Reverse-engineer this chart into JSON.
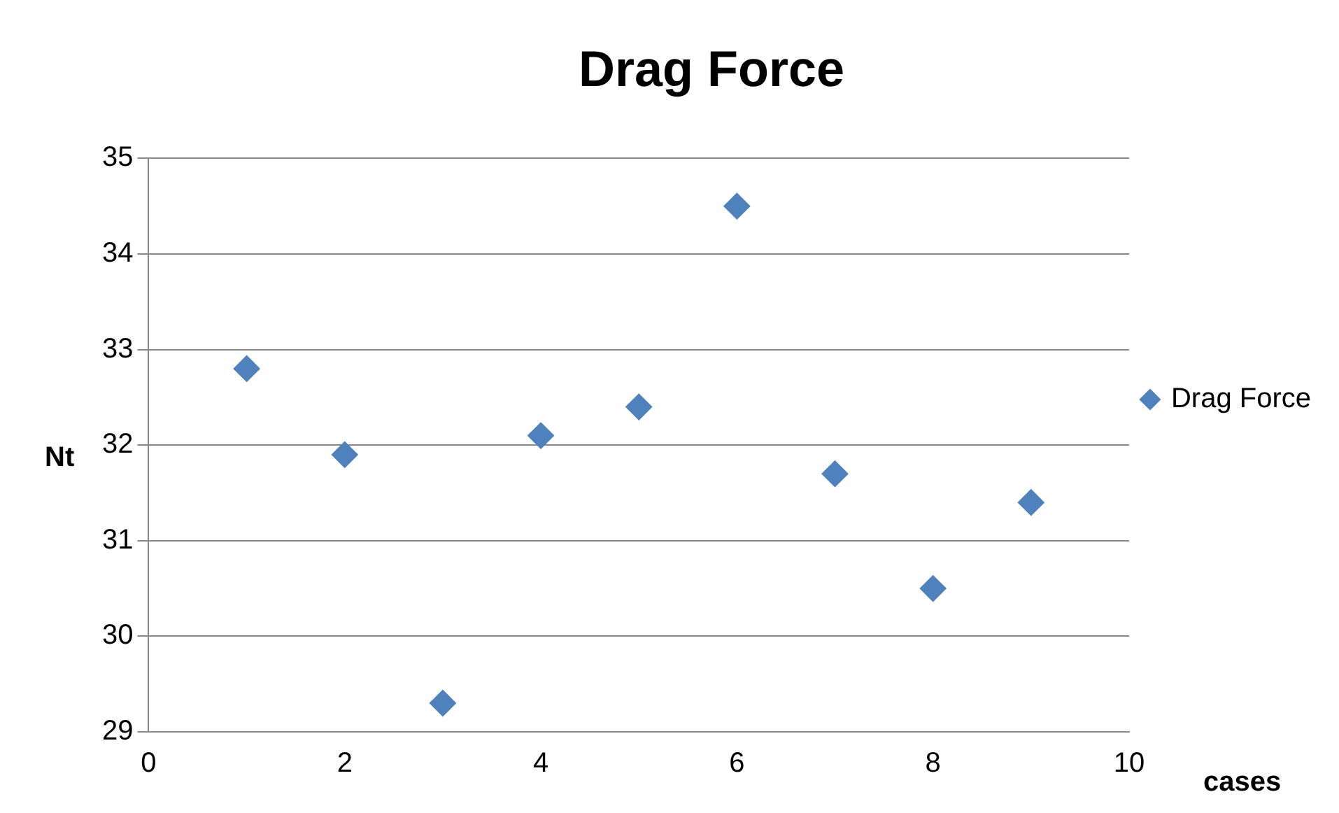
{
  "chart_data": {
    "type": "scatter",
    "title": "Drag Force",
    "xlabel": "cases",
    "ylabel": "Nt",
    "x": [
      1,
      2,
      3,
      4,
      5,
      6,
      7,
      8,
      9
    ],
    "series": [
      {
        "name": "Drag Force",
        "color": "#4f81bd",
        "values": [
          32.8,
          31.9,
          29.3,
          32.1,
          32.4,
          34.5,
          31.7,
          30.5,
          31.4
        ]
      }
    ],
    "xlim": [
      0,
      10
    ],
    "xticks": [
      0,
      2,
      4,
      6,
      8,
      10
    ],
    "ylim": [
      29,
      35
    ],
    "yticks": [
      29,
      30,
      31,
      32,
      33,
      34,
      35
    ],
    "grid": "y",
    "legend": "right",
    "marker": "diamond"
  }
}
